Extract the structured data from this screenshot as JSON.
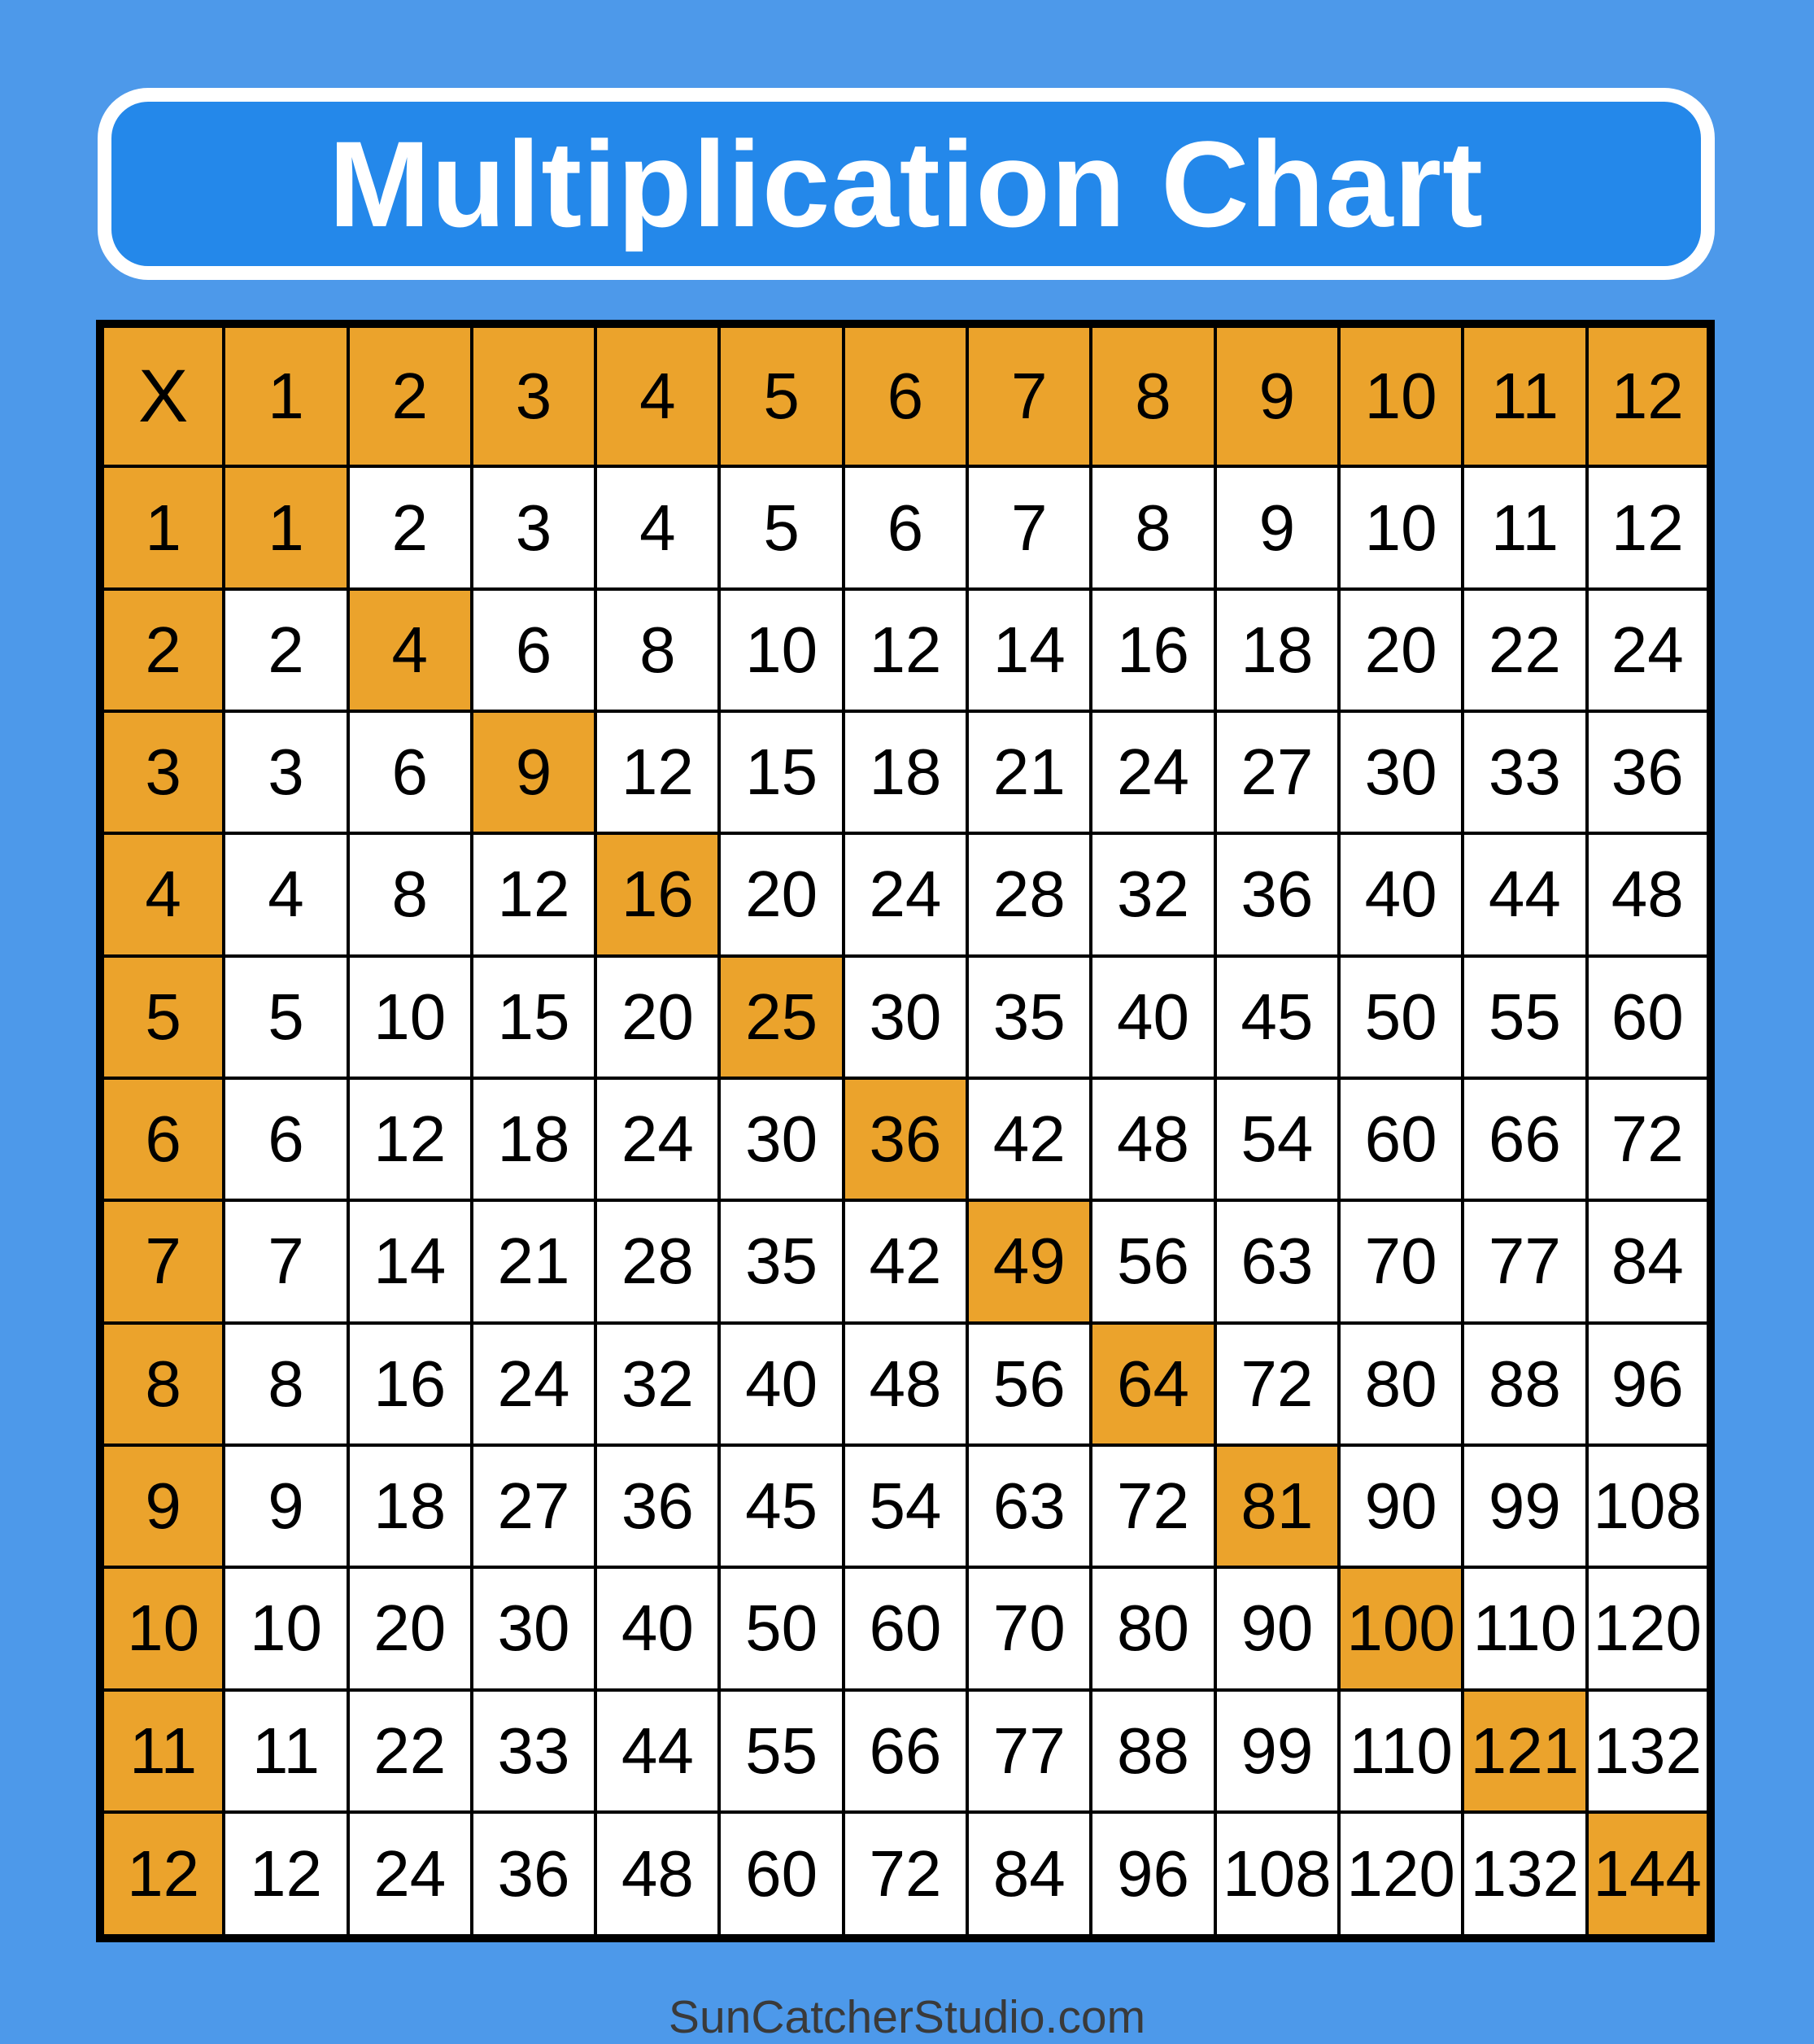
{
  "page": {
    "background_color": "#4D99EA",
    "footer_text": "SunCatcherStudio.com",
    "footer_text_color": "#3A3A3A"
  },
  "banner": {
    "title": "Multiplication Chart",
    "fill_color": "#2488EA",
    "border_color": "#FFFFFF",
    "text_color": "#FFFFFF"
  },
  "chart_data": {
    "type": "table",
    "title": "Multiplication Chart",
    "corner_label": "X",
    "column_headers": [
      "1",
      "2",
      "3",
      "4",
      "5",
      "6",
      "7",
      "8",
      "9",
      "10",
      "11",
      "12"
    ],
    "row_headers": [
      "1",
      "2",
      "3",
      "4",
      "5",
      "6",
      "7",
      "8",
      "9",
      "10",
      "11",
      "12"
    ],
    "rows": [
      [
        1,
        2,
        3,
        4,
        5,
        6,
        7,
        8,
        9,
        10,
        11,
        12
      ],
      [
        2,
        4,
        6,
        8,
        10,
        12,
        14,
        16,
        18,
        20,
        22,
        24
      ],
      [
        3,
        6,
        9,
        12,
        15,
        18,
        21,
        24,
        27,
        30,
        33,
        36
      ],
      [
        4,
        8,
        12,
        16,
        20,
        24,
        28,
        32,
        36,
        40,
        44,
        48
      ],
      [
        5,
        10,
        15,
        20,
        25,
        30,
        35,
        40,
        45,
        50,
        55,
        60
      ],
      [
        6,
        12,
        18,
        24,
        30,
        36,
        42,
        48,
        54,
        60,
        66,
        72
      ],
      [
        7,
        14,
        21,
        28,
        35,
        42,
        49,
        56,
        63,
        70,
        77,
        84
      ],
      [
        8,
        16,
        24,
        32,
        40,
        48,
        56,
        64,
        72,
        80,
        88,
        96
      ],
      [
        9,
        18,
        27,
        36,
        45,
        54,
        63,
        72,
        81,
        90,
        99,
        108
      ],
      [
        10,
        20,
        30,
        40,
        50,
        60,
        70,
        80,
        90,
        100,
        110,
        120
      ],
      [
        11,
        22,
        33,
        44,
        55,
        66,
        77,
        88,
        99,
        110,
        121,
        132
      ],
      [
        12,
        24,
        36,
        48,
        60,
        72,
        84,
        96,
        108,
        120,
        132,
        144
      ]
    ],
    "highlighted_diagonal_values": [
      1,
      4,
      9,
      16,
      25,
      36,
      49,
      64,
      81,
      100,
      121,
      144
    ],
    "layout_hints": {
      "header_row_bg": "orange",
      "header_column_bg": "orange",
      "diagonal_squares_bg": "orange",
      "grid": "black lines, thick outer border",
      "cell_shape": "square, 13x13 grid including headers"
    },
    "colors": {
      "header_bg": "#EBA32C",
      "diagonal_bg": "#EBA32C",
      "cell_bg": "#FFFFFF",
      "grid_line": "#000000",
      "cell_text": "#000000"
    }
  }
}
